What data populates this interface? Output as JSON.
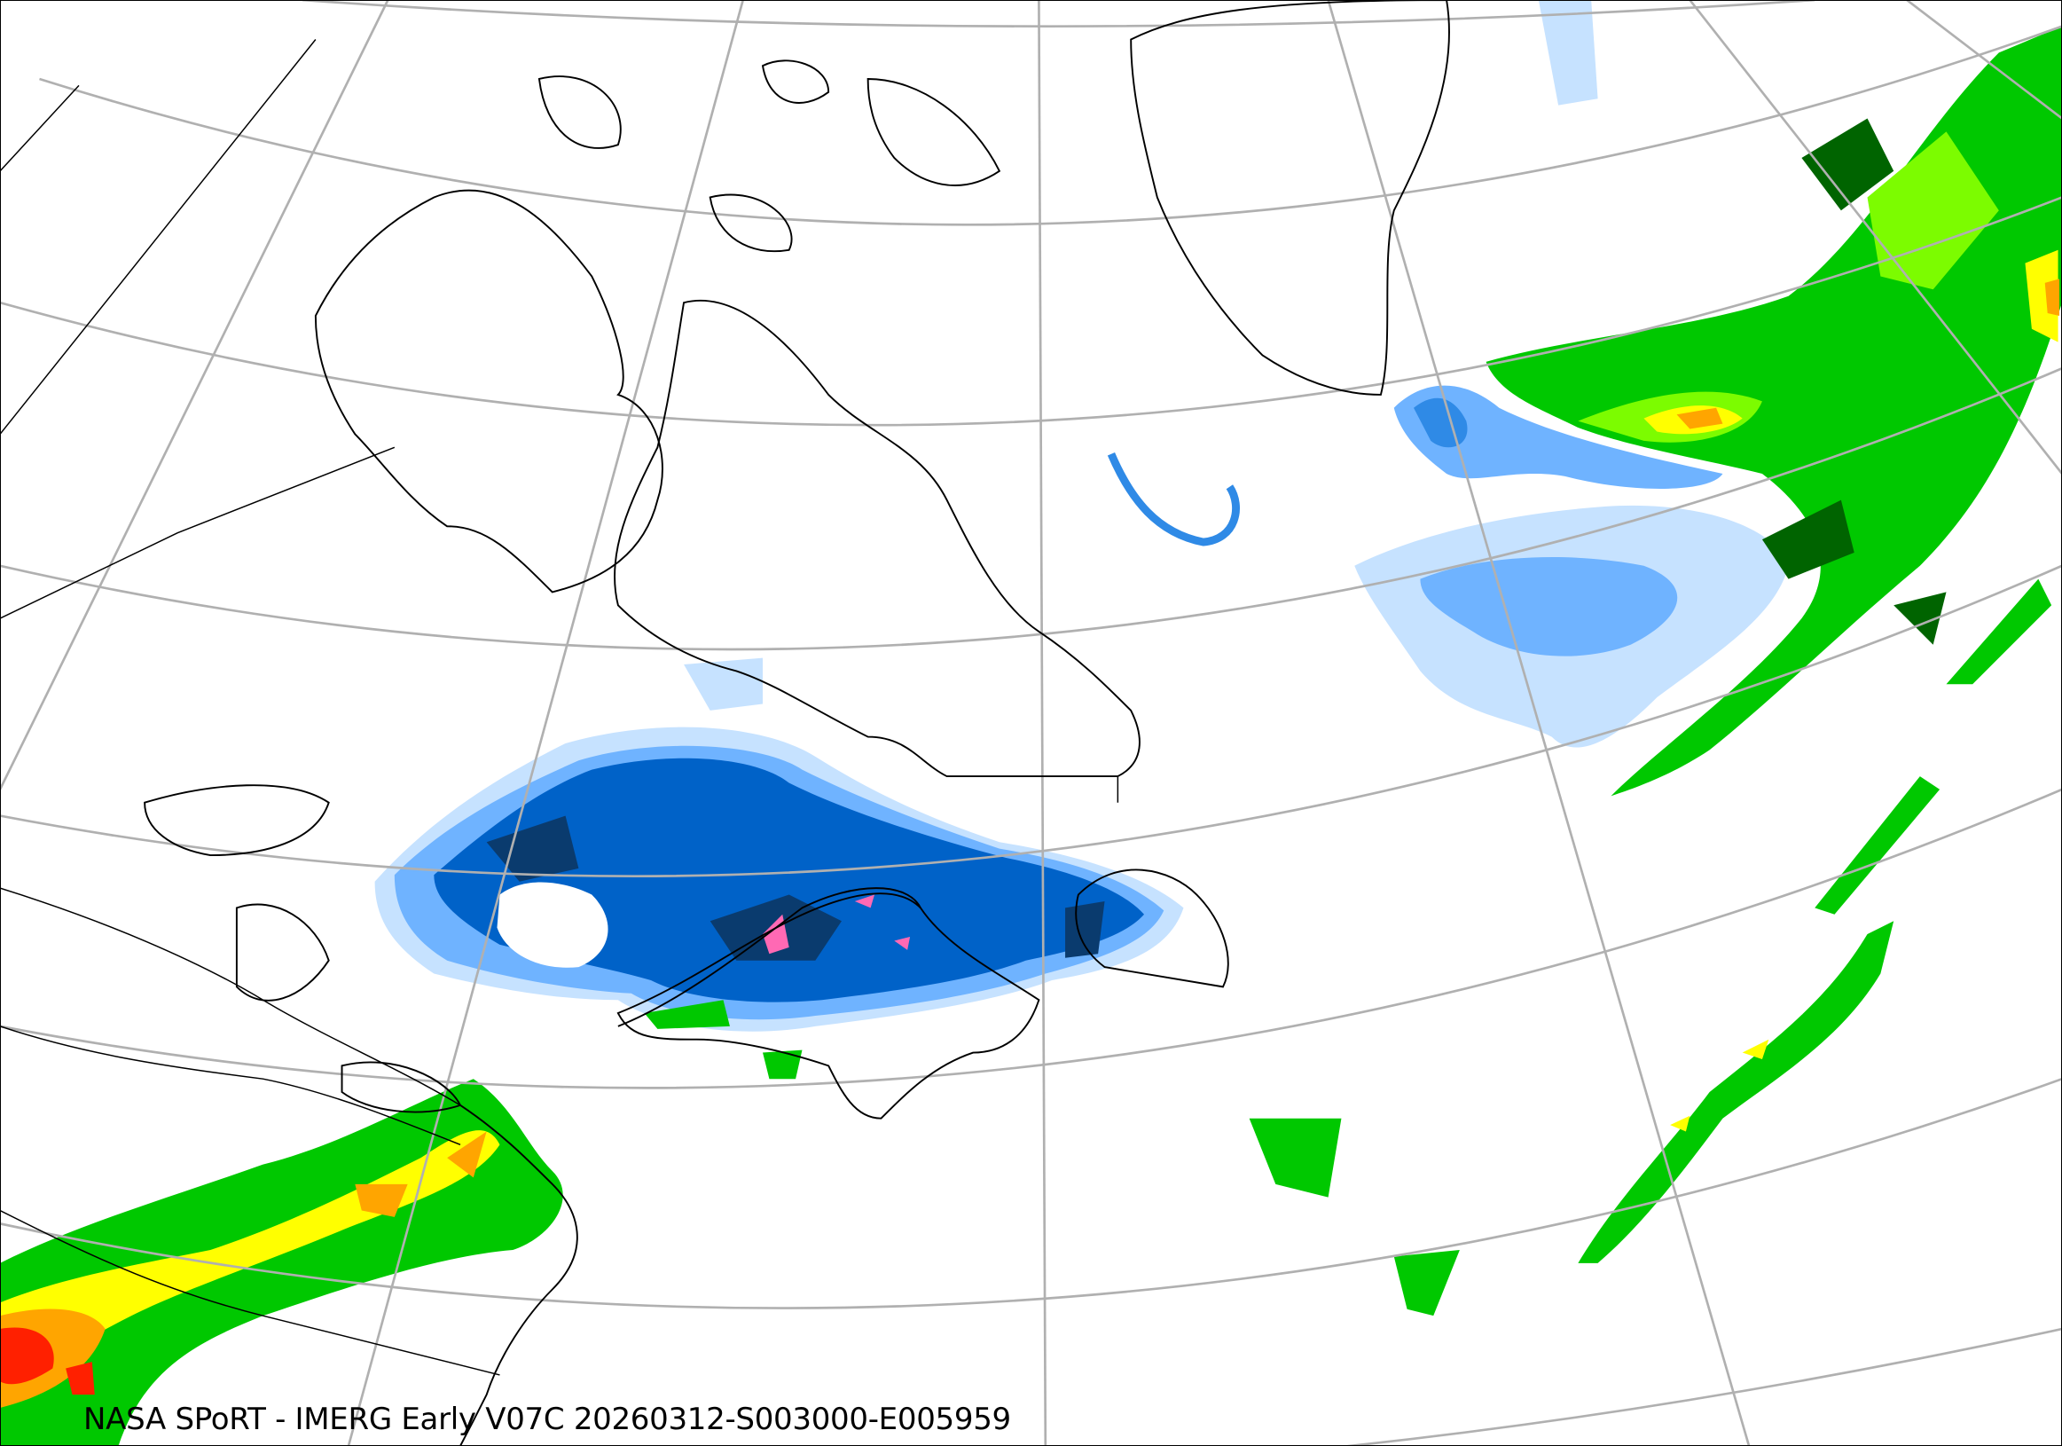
{
  "caption": "NASA SPoRT - IMERG Early V07C 20260312-S003000-E005959",
  "colors": {
    "snow_light": "#c6e2ff",
    "snow_medium": "#6fb3ff",
    "snow_heavy": "#2f8ae6",
    "snow_very_heavy": "#0062c8",
    "snow_extreme": "#0a3b6e",
    "mixed": "#ff69b4",
    "rain_light": "#006400",
    "rain_medium": "#00c800",
    "rain_moderate": "#7cfc00",
    "rain_heavy": "#ffff00",
    "rain_very_heavy": "#ffa500",
    "rain_extreme": "#ff2000",
    "graticule": "#b0b0b0",
    "coastline": "#000000"
  }
}
